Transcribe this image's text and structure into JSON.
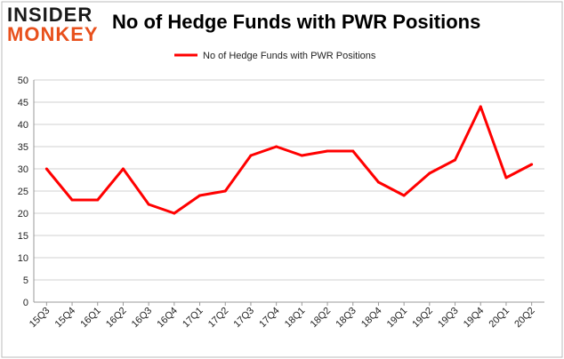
{
  "logo": {
    "line1": "INSIDER",
    "line2": "MONKEY"
  },
  "colors": {
    "series": "#ff0000",
    "grid": "#d0d0d0",
    "frame": "#bbbbbb",
    "logo_accent": "#e8501c"
  },
  "chart_data": {
    "type": "line",
    "title": "No of Hedge Funds with PWR Positions",
    "xlabel": "",
    "ylabel": "",
    "ylim": [
      0,
      50
    ],
    "yticks": [
      0,
      5,
      10,
      15,
      20,
      25,
      30,
      35,
      40,
      45,
      50
    ],
    "grid": true,
    "legend_position": "top-center",
    "categories": [
      "15Q3",
      "15Q4",
      "16Q1",
      "16Q2",
      "16Q3",
      "16Q4",
      "17Q1",
      "17Q2",
      "17Q3",
      "17Q4",
      "18Q1",
      "18Q2",
      "18Q3",
      "18Q4",
      "19Q1",
      "19Q2",
      "19Q3",
      "19Q4",
      "20Q1",
      "20Q2"
    ],
    "series": [
      {
        "name": "No of Hedge Funds with PWR Positions",
        "values": [
          30,
          23,
          23,
          30,
          22,
          20,
          24,
          25,
          33,
          35,
          33,
          34,
          34,
          27,
          24,
          29,
          32,
          44,
          28,
          31
        ]
      }
    ]
  }
}
